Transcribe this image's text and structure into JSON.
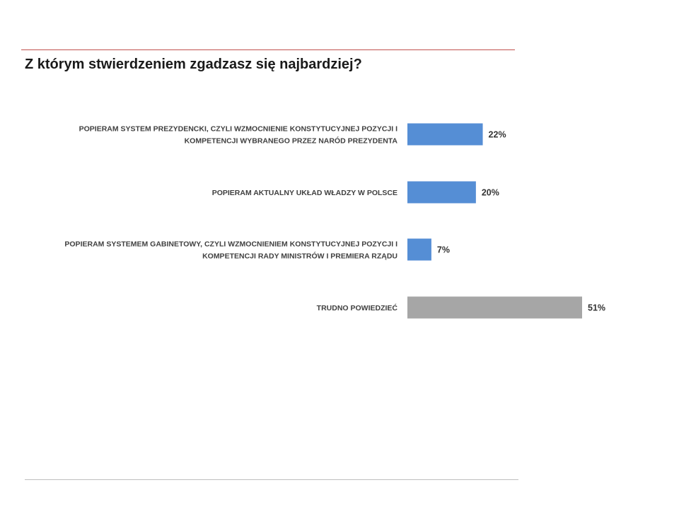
{
  "title": "Z którym stwierdzeniem zgadzasz się najbardziej?",
  "chart_data": {
    "type": "bar",
    "orientation": "horizontal",
    "title": "Z którym stwierdzeniem zgadzasz się najbardziej?",
    "categories": [
      [
        "POPIERAM SYSTEM PREZYDENCKI, CZYLI WZMOCNIENIE KONSTYTUCYJNEJ POZYCJI I",
        "KOMPETENCJI WYBRANEGO PRZEZ NARÓD PREZYDENTA"
      ],
      [
        "POPIERAM AKTUALNY UKŁAD WŁADZY W POLSCE"
      ],
      [
        "POPIERAM SYSTEMEM GABINETOWY, CZYLI WZMOCNIENIEM KONSTYTUCYJNEJ POZYCJI I",
        "KOMPETENCJI RADY MINISTRÓW I PREMIERA RZĄDU"
      ],
      [
        "TRUDNO POWIEDZIEĆ"
      ]
    ],
    "values": [
      22,
      20,
      7,
      51
    ],
    "value_labels": [
      "22%",
      "20%",
      "7%",
      "51%"
    ],
    "unit": "%",
    "colors": [
      "#558ed5",
      "#558ed5",
      "#558ed5",
      "#a6a6a6"
    ],
    "xlim": [
      0,
      51
    ],
    "grid": false,
    "legend": "none"
  }
}
